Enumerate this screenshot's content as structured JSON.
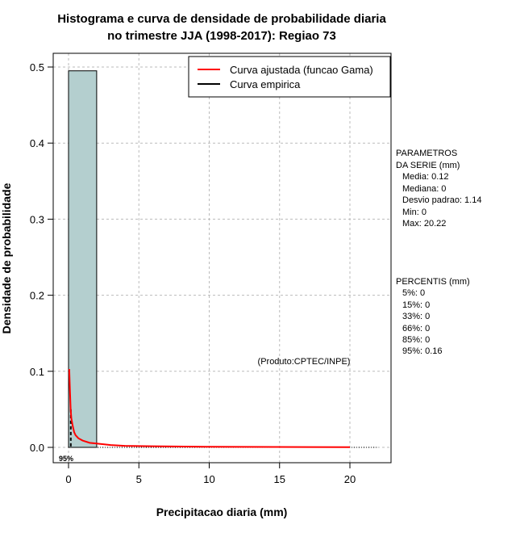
{
  "chart_data": {
    "type": "bar",
    "title": [
      "Histograma e curva de densidade de probabilidade diaria",
      "no trimestre JJA (1998-2017): Regiao 73"
    ],
    "xlabel": "Precipitacao diaria (mm)",
    "ylabel": "Densidade de probabilidade",
    "xlim": [
      -1,
      23
    ],
    "ylim": [
      -0.02,
      0.52
    ],
    "xticks": [
      0,
      5,
      10,
      15,
      20
    ],
    "yticks": [
      0.0,
      0.1,
      0.2,
      0.3,
      0.4,
      0.5
    ],
    "grid": true,
    "histogram": [
      {
        "x0": 0,
        "x1": 2,
        "density": 0.495
      }
    ],
    "series": [
      {
        "name": "Curva ajustada (funcao Gama)",
        "color": "#ff0000",
        "x": [
          0.05,
          0.1,
          0.15,
          0.2,
          0.3,
          0.4,
          0.5,
          0.7,
          1,
          1.5,
          2,
          3,
          4,
          6,
          10,
          20
        ],
        "y": [
          0.103,
          0.075,
          0.05,
          0.038,
          0.028,
          0.02,
          0.016,
          0.012,
          0.009,
          0.006,
          0.005,
          0.003,
          0.002,
          0.0015,
          0.0008,
          0.0003
        ]
      },
      {
        "name": "Curva empirica",
        "color": "#000000"
      }
    ],
    "legend_position": "top-right",
    "percentile_marker": {
      "label": "95%",
      "x": 0.16
    },
    "annotation": "(Produto:CPTEC/INPE)",
    "params_title": [
      "PARAMETROS",
      "DA SERIE (mm)"
    ],
    "params": [
      "Media: 0.12",
      "Mediana: 0",
      "Desvio padrao: 1.14",
      "Min: 0",
      "Max: 20.22"
    ],
    "percentis_title": "PERCENTIS (mm)",
    "percentis": [
      "5%: 0",
      "15%: 0",
      "33%: 0",
      "66%: 0",
      "85%: 0",
      "95%: 0.16"
    ]
  }
}
